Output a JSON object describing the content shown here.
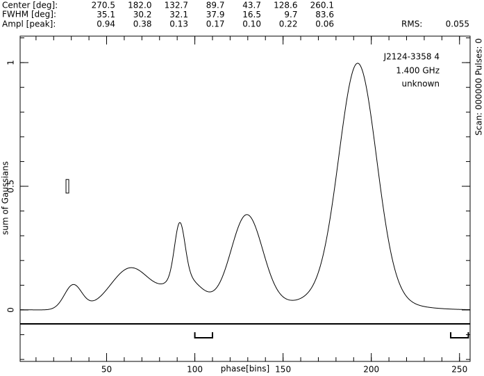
{
  "header": {
    "rows": [
      "Center [deg]:",
      "FWHM  [deg]:",
      "Ampl  [peak]:"
    ],
    "center": [
      270.5,
      {
        "value": 182,
        "label": "182.0"
      },
      132.7,
      89.7,
      43.7,
      128.6,
      260.1
    ],
    "fwhm": [
      35.1,
      30.2,
      32.1,
      37.9,
      16.5,
      9.7,
      83.6
    ],
    "ampl": [
      0.94,
      0.38,
      0.13,
      0.17,
      {
        "value": 0.1,
        "label": "0.10"
      },
      0.22,
      0.06
    ],
    "rms_label": "RMS:",
    "rms": 0.055
  },
  "chart_data": {
    "type": "gaussian-profile",
    "xlabel": "phase[bins]",
    "ylabel": "sum of Gaussians",
    "side_label": "Scan: 000000   Pulses: 0",
    "annotations": [
      "J2124-3358 4",
      "1.400 GHz",
      "unknown"
    ],
    "xlim": [
      1,
      256
    ],
    "xticks": [
      50,
      100,
      150,
      200,
      250
    ],
    "ylim": [
      -0.208,
      1.107
    ],
    "yticks": [
      0,
      0.5,
      1
    ],
    "windows": [
      [
        100,
        110
      ],
      [
        245,
        255
      ]
    ],
    "color": "#000000"
  }
}
